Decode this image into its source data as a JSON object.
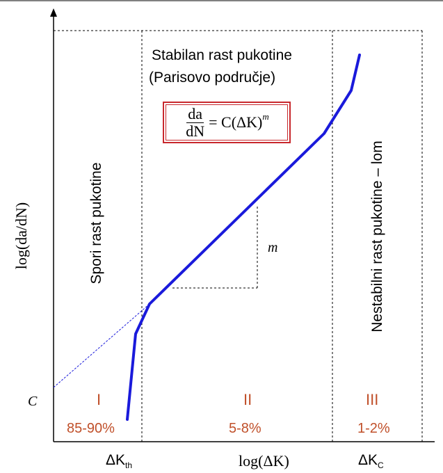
{
  "diagram": {
    "y_axis_label": "log(da/dN)",
    "x_axis_label": "log(ΔK)",
    "c_label": "C",
    "delta_k_th": {
      "base": "ΔK",
      "sub": "th"
    },
    "delta_k_c": {
      "base": "ΔK",
      "sub": "C"
    },
    "slope_label": "m",
    "region_ii_title_line1": "Stabilan rast pukotine",
    "region_ii_title_line2": "(Parisovo područje)",
    "region_i_title": "Spori rast pukotine",
    "region_iii_title": "Nestabilni rast pukotine – lom",
    "formula": {
      "num": "da",
      "den": "dN",
      "rhs": "= C(ΔK)",
      "exp": "m"
    },
    "regions": [
      {
        "numeral": "I",
        "percent": "85-90%"
      },
      {
        "numeral": "II",
        "percent": "5-8%"
      },
      {
        "numeral": "III",
        "percent": "1-2%"
      }
    ],
    "colors": {
      "curve": "#1a1adb",
      "accent_text": "#c0502a",
      "formula_border": "#c8282d"
    }
  }
}
